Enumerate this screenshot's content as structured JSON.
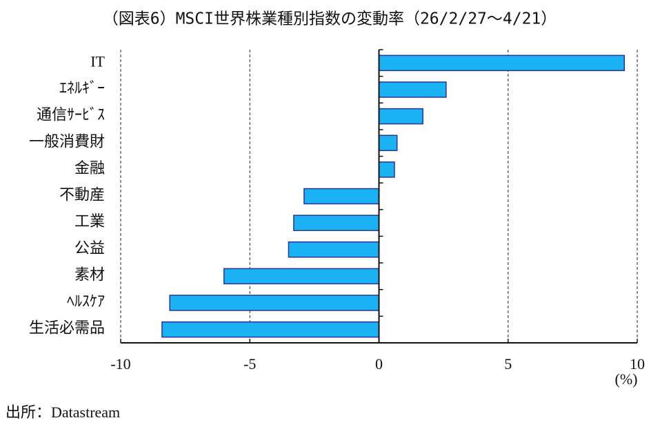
{
  "chart_data": {
    "type": "bar",
    "orientation": "horizontal",
    "title": "（図表6）MSCI世界株業種別指数の変動率（26/2/27～4/21）",
    "categories": [
      "IT",
      "ｴﾈﾙｷﾞｰ",
      "通信ｻｰﾋﾞｽ",
      "一般消費財",
      "金融",
      "不動産",
      "工業",
      "公益",
      "素材",
      "ﾍﾙｽｹｱ",
      "生活必需品"
    ],
    "values": [
      9.5,
      2.6,
      1.7,
      0.7,
      0.6,
      -2.9,
      -3.3,
      -3.5,
      -6.0,
      -8.1,
      -8.4
    ],
    "color": "#1ab2f2",
    "xlim": [
      -10,
      10
    ],
    "xticks": [
      -10,
      -5,
      0,
      5,
      10
    ],
    "x_label": "(%)",
    "grid": true,
    "source": "出所：Datastream"
  }
}
